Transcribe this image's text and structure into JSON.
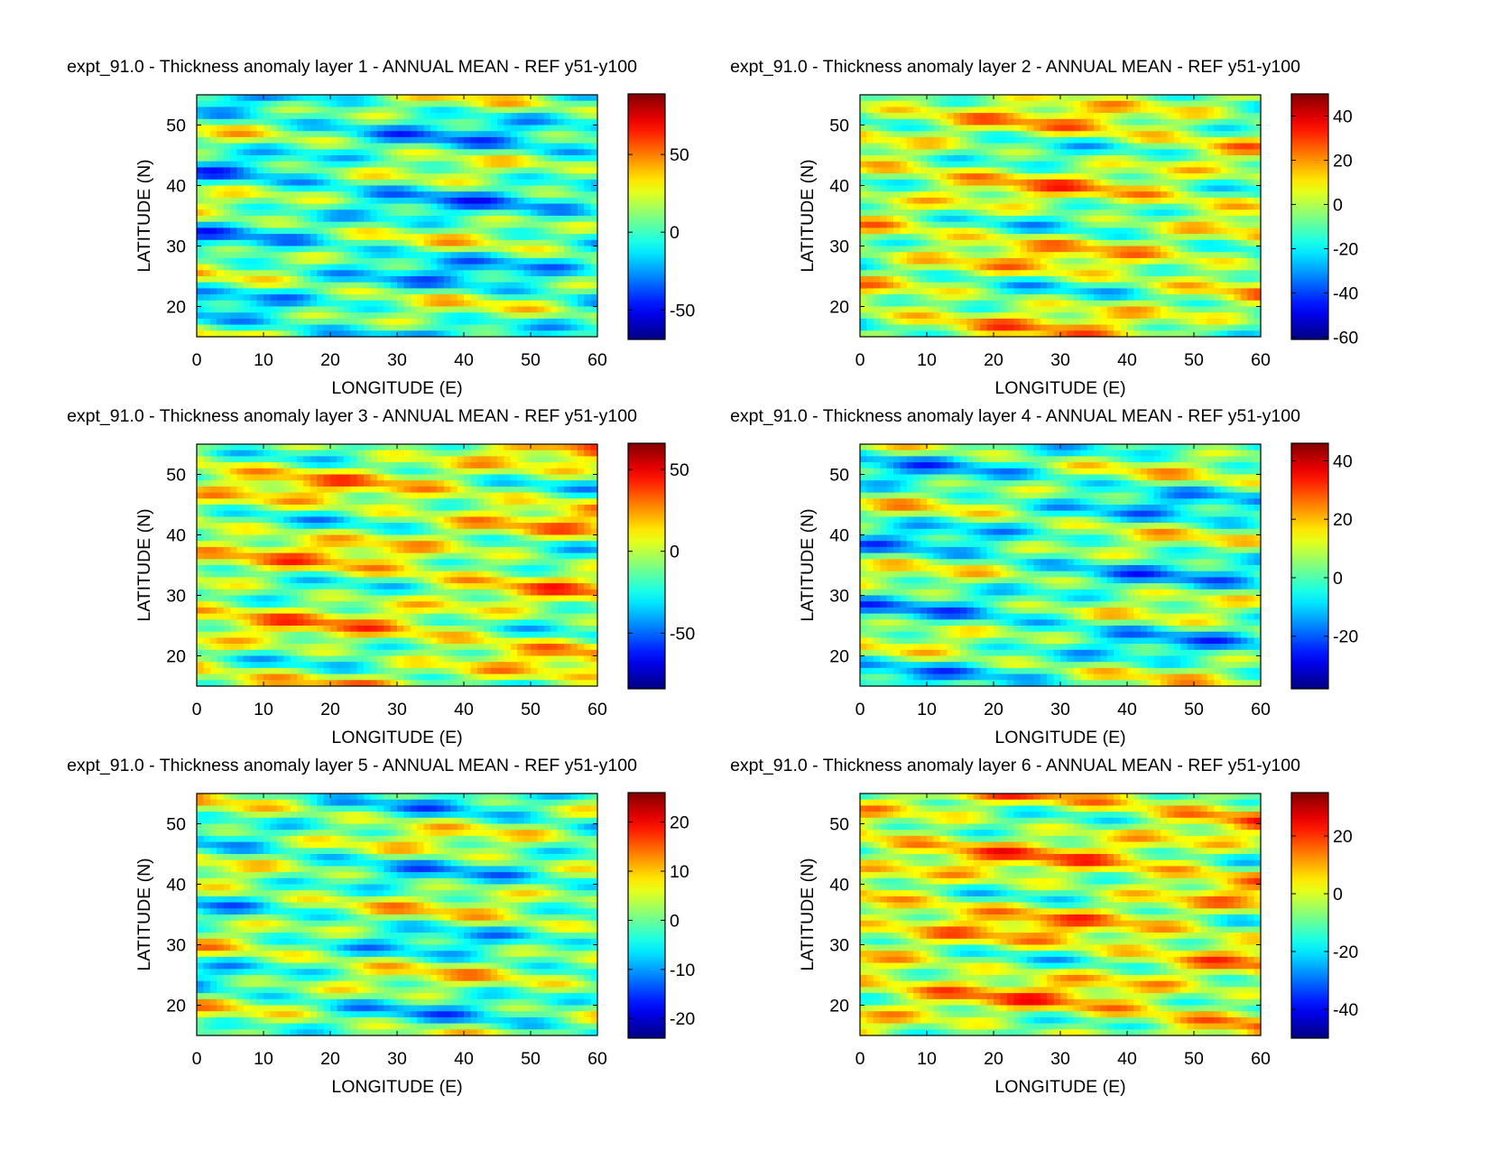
{
  "figure": {
    "colormap": "jet"
  },
  "chart_data": [
    {
      "type": "heatmap",
      "title": "expt_91.0 - Thickness anomaly layer 1 - ANNUAL MEAN - REF y51-y100",
      "xlabel": "LONGITUDE (E)",
      "ylabel": "LATITUDE (N)",
      "xlim": [
        0,
        60
      ],
      "ylim": [
        15,
        55
      ],
      "xticks": [
        0,
        10,
        20,
        30,
        40,
        50,
        60
      ],
      "yticks": [
        20,
        30,
        40,
        50
      ],
      "clim": [
        -69,
        89
      ],
      "cticks": [
        -50,
        0,
        50
      ]
    },
    {
      "type": "heatmap",
      "title": "expt_91.0 - Thickness anomaly layer 2 - ANNUAL MEAN - REF y51-y100",
      "xlabel": "LONGITUDE (E)",
      "ylabel": "LATITUDE (N)",
      "xlim": [
        0,
        60
      ],
      "ylim": [
        15,
        55
      ],
      "xticks": [
        0,
        10,
        20,
        30,
        40,
        50,
        60
      ],
      "yticks": [
        20,
        30,
        40,
        50
      ],
      "clim": [
        -61,
        50
      ],
      "cticks": [
        -60,
        -40,
        -20,
        0,
        20,
        40
      ]
    },
    {
      "type": "heatmap",
      "title": "expt_91.0 - Thickness anomaly layer 3 - ANNUAL MEAN - REF y51-y100",
      "xlabel": "LONGITUDE (E)",
      "ylabel": "LATITUDE (N)",
      "xlim": [
        0,
        60
      ],
      "ylim": [
        15,
        55
      ],
      "xticks": [
        0,
        10,
        20,
        30,
        40,
        50,
        60
      ],
      "yticks": [
        20,
        30,
        40,
        50
      ],
      "clim": [
        -84,
        66
      ],
      "cticks": [
        -50,
        0,
        50
      ]
    },
    {
      "type": "heatmap",
      "title": "expt_91.0 - Thickness anomaly layer 4 - ANNUAL MEAN - REF y51-y100",
      "xlabel": "LONGITUDE (E)",
      "ylabel": "LATITUDE (N)",
      "xlim": [
        0,
        60
      ],
      "ylim": [
        15,
        55
      ],
      "xticks": [
        0,
        10,
        20,
        30,
        40,
        50,
        60
      ],
      "yticks": [
        20,
        30,
        40,
        50
      ],
      "clim": [
        -38,
        46
      ],
      "cticks": [
        -20,
        0,
        20,
        40
      ]
    },
    {
      "type": "heatmap",
      "title": "expt_91.0 - Thickness anomaly layer 5 - ANNUAL MEAN - REF y51-y100",
      "xlabel": "LONGITUDE (E)",
      "ylabel": "LATITUDE (N)",
      "xlim": [
        0,
        60
      ],
      "ylim": [
        15,
        55
      ],
      "xticks": [
        0,
        10,
        20,
        30,
        40,
        50,
        60
      ],
      "yticks": [
        20,
        30,
        40,
        50
      ],
      "clim": [
        -24,
        26
      ],
      "cticks": [
        -20,
        -10,
        0,
        10,
        20
      ]
    },
    {
      "type": "heatmap",
      "title": "expt_91.0 - Thickness anomaly layer 6 - ANNUAL MEAN - REF y51-y100",
      "xlabel": "LONGITUDE (E)",
      "ylabel": "LATITUDE (N)",
      "xlim": [
        0,
        60
      ],
      "ylim": [
        15,
        55
      ],
      "xticks": [
        0,
        10,
        20,
        30,
        40,
        50,
        60
      ],
      "yticks": [
        20,
        30,
        40,
        50
      ],
      "clim": [
        -50,
        35
      ],
      "cticks": [
        -40,
        -20,
        0,
        20
      ]
    }
  ]
}
